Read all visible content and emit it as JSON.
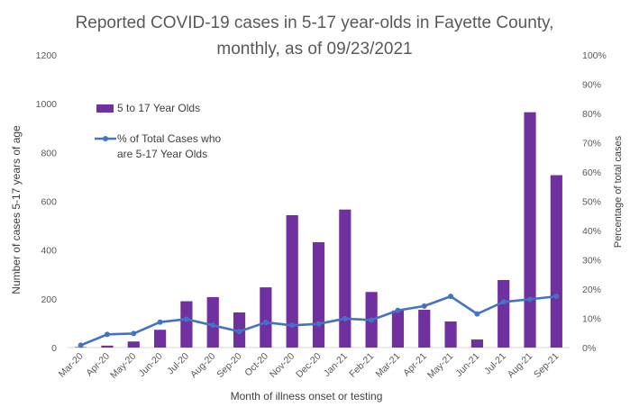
{
  "chart_data": {
    "type": "bar",
    "title_lines": [
      "Reported COVID-19 cases in 5-17 year-olds in Fayette County,",
      "monthly, as of 09/23/2021"
    ],
    "categories": [
      "Mar-20",
      "Apr-20",
      "May-20",
      "Jun-20",
      "Jul-20",
      "Aug-20",
      "Sep-20",
      "Oct-20",
      "Nov-20",
      "Dec-20",
      "Jan-21",
      "Feb-21",
      "Mar-21",
      "Apr-21",
      "May-21",
      "Jun-21",
      "Jul-21",
      "Aug-21",
      "Sep-21"
    ],
    "series": [
      {
        "name": "5 to 17 Year Olds",
        "type": "bar",
        "axis": "left",
        "color": "#7030a0",
        "values": [
          2,
          8,
          25,
          73,
          190,
          207,
          144,
          247,
          543,
          432,
          566,
          228,
          152,
          155,
          107,
          33,
          277,
          965,
          707
        ]
      },
      {
        "name_lines": [
          "% of Total Cases who",
          "are 5-17 Year Olds"
        ],
        "type": "line",
        "axis": "right",
        "color": "#4472c4",
        "values": [
          0.8,
          4.5,
          4.8,
          8.7,
          9.7,
          7.6,
          5.5,
          8.6,
          7.6,
          8.1,
          9.9,
          9.4,
          12.7,
          14.2,
          17.5,
          11.5,
          15.6,
          16.5,
          17.5
        ]
      }
    ],
    "ylabel": "Number of cases 5-17 years of age",
    "y2label": "Percentage of total cases",
    "xlabel": "Month of illness onset or testing",
    "ylim": [
      0,
      1200
    ],
    "y_ticks": [
      "0",
      "200",
      "400",
      "600",
      "800",
      "1000",
      "1200"
    ],
    "y2lim": [
      0,
      100
    ],
    "y2_ticks": [
      "0%",
      "10%",
      "20%",
      "30%",
      "40%",
      "50%",
      "60%",
      "70%",
      "80%",
      "90%",
      "100%"
    ],
    "grid": false,
    "legend_position": "upper-left inside plot"
  }
}
